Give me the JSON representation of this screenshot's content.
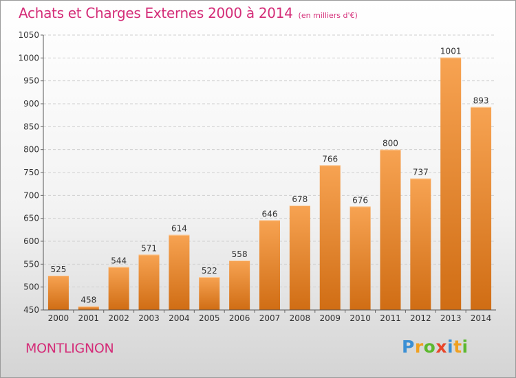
{
  "header": {
    "title": "Achats et Charges Externes 2000 à 2014",
    "subtitle": "(en milliers d'€)"
  },
  "footer": {
    "commune": "MONTLIGNON",
    "logo_text": "Proxiti",
    "logo_colors": [
      "#3a8fd4",
      "#f0a020",
      "#5cb82e",
      "#e8462a",
      "#3a8fd4",
      "#f0a020",
      "#5cb82e"
    ]
  },
  "colors": {
    "bar_top": "#f7a352",
    "bar_bottom": "#d06d14",
    "accent": "#d42d78"
  },
  "chart_data": {
    "type": "bar",
    "title": "Achats et Charges Externes 2000 à 2014",
    "subtitle": "(en milliers d'€)",
    "categories": [
      "2000",
      "2001",
      "2002",
      "2003",
      "2004",
      "2005",
      "2006",
      "2007",
      "2008",
      "2009",
      "2010",
      "2011",
      "2012",
      "2013",
      "2014"
    ],
    "values": [
      525,
      458,
      544,
      571,
      614,
      522,
      558,
      646,
      678,
      766,
      676,
      800,
      737,
      1001,
      893
    ],
    "ylim": [
      450,
      1050
    ],
    "yticks": [
      450,
      500,
      550,
      600,
      650,
      700,
      750,
      800,
      850,
      900,
      950,
      1000,
      1050
    ],
    "grid": true,
    "legend": "none"
  }
}
